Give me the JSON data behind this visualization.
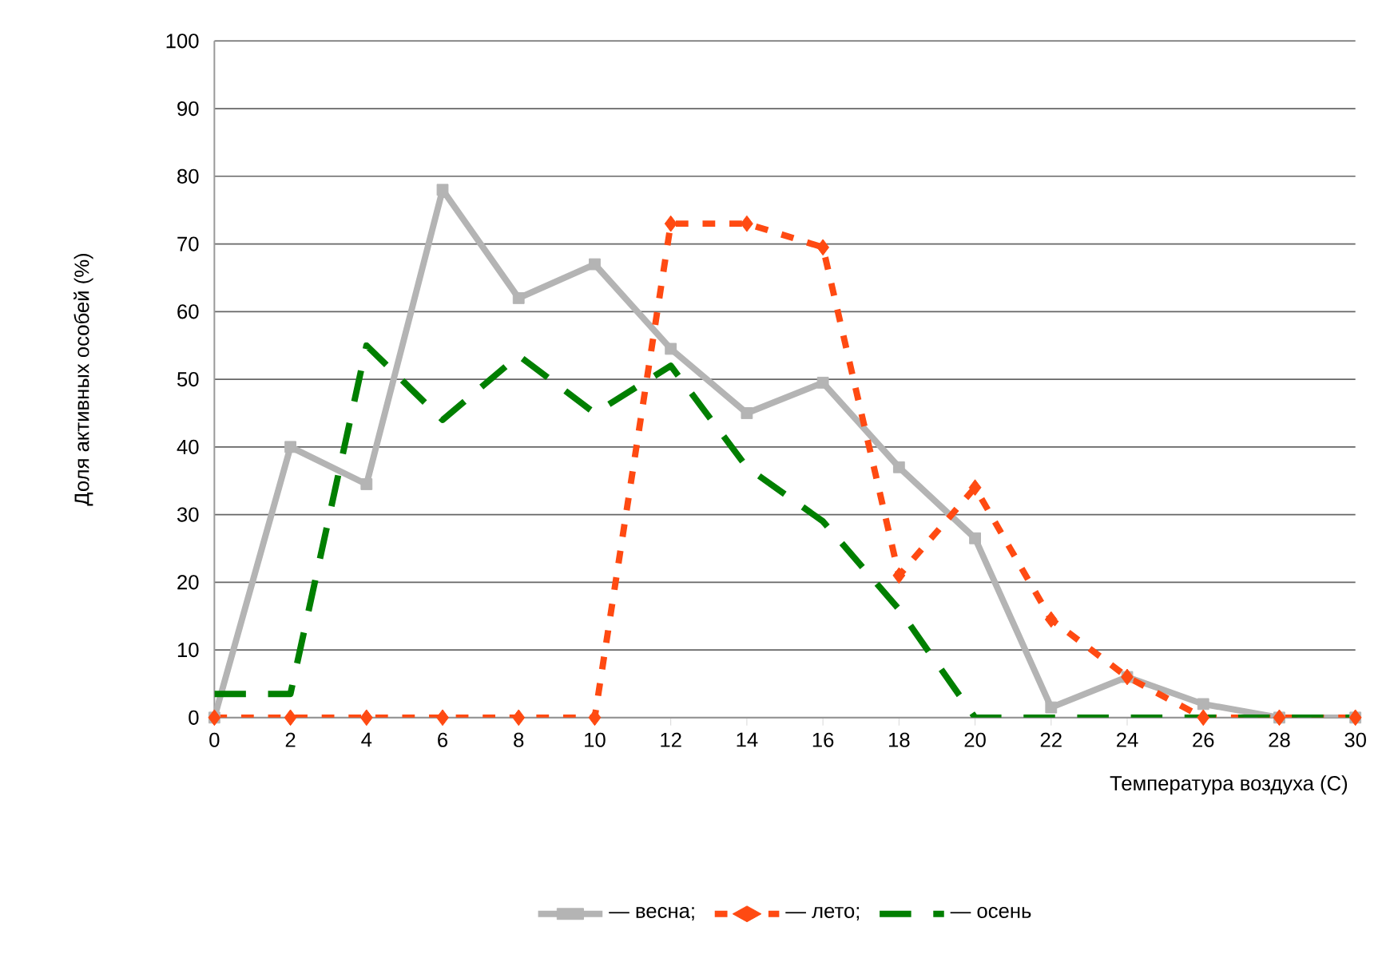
{
  "chart_data": {
    "type": "line",
    "xlabel": "Температура воздуха (С)",
    "ylabel": "Доля активных особей (%)",
    "x": [
      0,
      2,
      4,
      6,
      8,
      10,
      12,
      14,
      16,
      18,
      20,
      22,
      24,
      26,
      28,
      30
    ],
    "series": [
      {
        "name": "— весна;",
        "color": "#b4b4b4",
        "marker": "square",
        "line_style": "solid",
        "values": [
          0,
          40,
          34.5,
          78,
          62,
          67,
          54.5,
          45,
          49.5,
          37,
          26.5,
          1.5,
          6,
          2,
          0,
          0
        ]
      },
      {
        "name": "— лето;",
        "color": "#ff4a12",
        "marker": "diamond",
        "line_style": "dotted",
        "values": [
          0,
          0,
          0,
          0,
          0,
          0,
          73,
          73,
          69.5,
          21,
          34,
          14.5,
          6,
          0,
          0,
          0
        ]
      },
      {
        "name": "— осень",
        "color": "#007f00",
        "marker": "none",
        "line_style": "dashed",
        "values": [
          3.5,
          3.5,
          55,
          44,
          53.5,
          45,
          52,
          37,
          29,
          16,
          0,
          0,
          0,
          0,
          0,
          0
        ]
      }
    ],
    "xlim": [
      0,
      30
    ],
    "xticks": [
      0,
      2,
      4,
      6,
      8,
      10,
      12,
      14,
      16,
      18,
      20,
      22,
      24,
      26,
      28,
      30
    ],
    "ylim": [
      0,
      100
    ],
    "yticks": [
      0,
      10,
      20,
      30,
      40,
      50,
      60,
      70,
      80,
      90,
      100
    ],
    "grid": "y",
    "legend": "bottom"
  }
}
